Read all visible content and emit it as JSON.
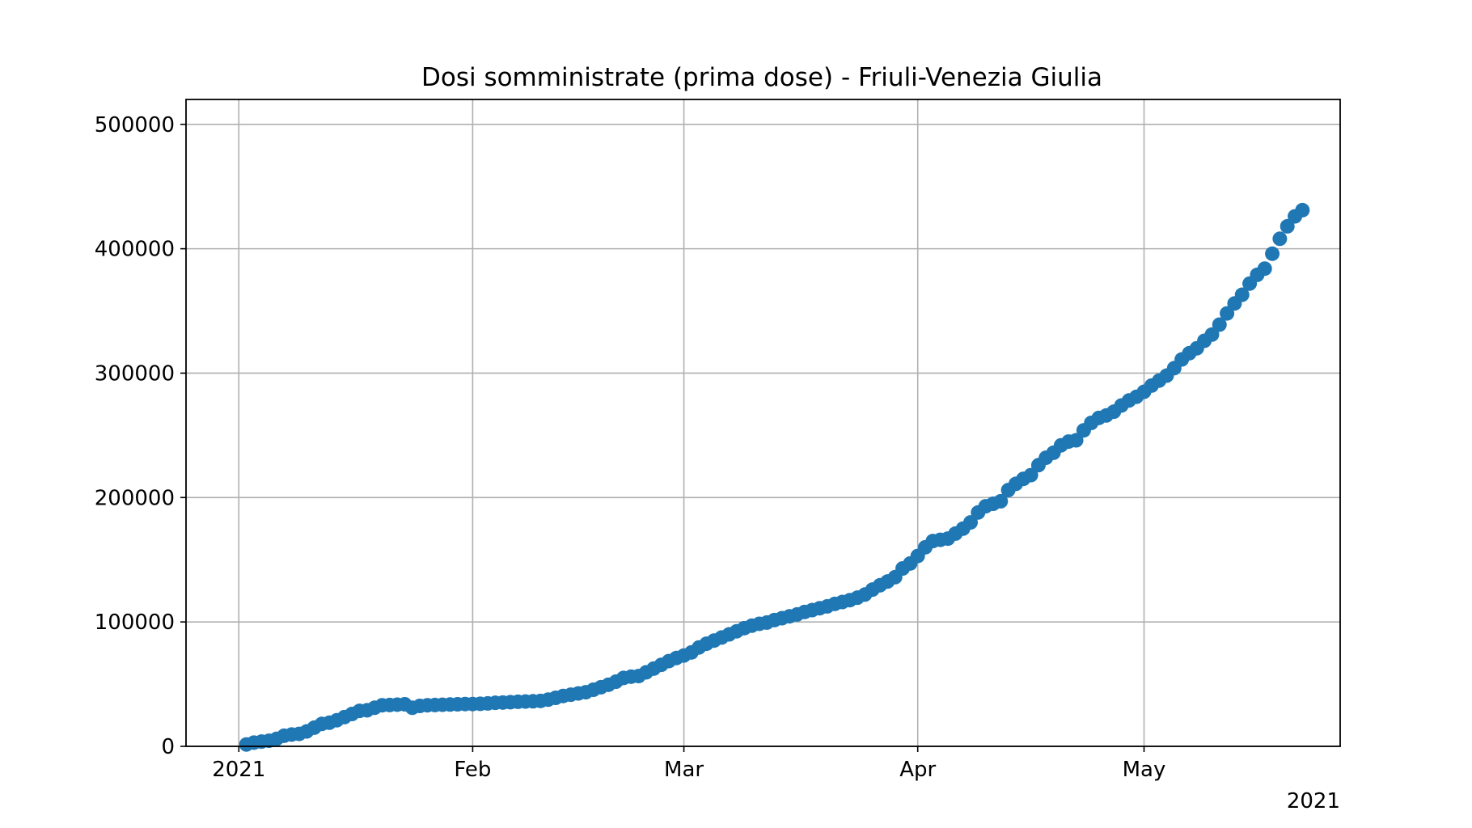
{
  "chart_data": {
    "type": "scatter",
    "title": "Dosi somministrate (prima dose) - Friuli-Venezia Giulia",
    "xlabel": "",
    "ylabel": "",
    "xlim": [
      "2020-12-25",
      "2021-05-27"
    ],
    "ylim": [
      0,
      520000
    ],
    "x_ticks": [
      {
        "date": "2021-01-01",
        "label": "2021"
      },
      {
        "date": "2021-02-01",
        "label": "Feb"
      },
      {
        "date": "2021-03-01",
        "label": "Mar"
      },
      {
        "date": "2021-04-01",
        "label": "Apr"
      },
      {
        "date": "2021-05-01",
        "label": "May"
      }
    ],
    "x_offset_label": "2021",
    "y_ticks": [
      {
        "value": 0,
        "label": "0"
      },
      {
        "value": 100000,
        "label": "100000"
      },
      {
        "value": 200000,
        "label": "200000"
      },
      {
        "value": 300000,
        "label": "300000"
      },
      {
        "value": 400000,
        "label": "400000"
      },
      {
        "value": 500000,
        "label": "500000"
      }
    ],
    "grid": true,
    "marker_color": "#1f77b4",
    "series": [
      {
        "points": [
          [
            "2021-01-02",
            1500
          ],
          [
            "2021-01-03",
            3000
          ],
          [
            "2021-01-04",
            3800
          ],
          [
            "2021-01-05",
            4500
          ],
          [
            "2021-01-06",
            6000
          ],
          [
            "2021-01-07",
            8500
          ],
          [
            "2021-01-08",
            9500
          ],
          [
            "2021-01-09",
            10000
          ],
          [
            "2021-01-10",
            12000
          ],
          [
            "2021-01-11",
            15000
          ],
          [
            "2021-01-12",
            18000
          ],
          [
            "2021-01-13",
            19000
          ],
          [
            "2021-01-14",
            21000
          ],
          [
            "2021-01-15",
            23500
          ],
          [
            "2021-01-16",
            26000
          ],
          [
            "2021-01-17",
            28500
          ],
          [
            "2021-01-18",
            29000
          ],
          [
            "2021-01-19",
            31000
          ],
          [
            "2021-01-20",
            33000
          ],
          [
            "2021-01-21",
            33200
          ],
          [
            "2021-01-22",
            33500
          ],
          [
            "2021-01-23",
            33800
          ],
          [
            "2021-01-24",
            31000
          ],
          [
            "2021-01-25",
            32500
          ],
          [
            "2021-01-26",
            33000
          ],
          [
            "2021-01-27",
            33200
          ],
          [
            "2021-01-28",
            33400
          ],
          [
            "2021-01-29",
            33600
          ],
          [
            "2021-01-30",
            33800
          ],
          [
            "2021-01-31",
            34000
          ],
          [
            "2021-02-01",
            34000
          ],
          [
            "2021-02-02",
            34200
          ],
          [
            "2021-02-03",
            34500
          ],
          [
            "2021-02-04",
            35000
          ],
          [
            "2021-02-05",
            35200
          ],
          [
            "2021-02-06",
            35500
          ],
          [
            "2021-02-07",
            35800
          ],
          [
            "2021-02-08",
            36000
          ],
          [
            "2021-02-09",
            36200
          ],
          [
            "2021-02-10",
            36500
          ],
          [
            "2021-02-11",
            37500
          ],
          [
            "2021-02-12",
            39000
          ],
          [
            "2021-02-13",
            40500
          ],
          [
            "2021-02-14",
            41500
          ],
          [
            "2021-02-15",
            42500
          ],
          [
            "2021-02-16",
            43500
          ],
          [
            "2021-02-17",
            45500
          ],
          [
            "2021-02-18",
            47500
          ],
          [
            "2021-02-19",
            49500
          ],
          [
            "2021-02-20",
            52000
          ],
          [
            "2021-02-21",
            55000
          ],
          [
            "2021-02-22",
            56000
          ],
          [
            "2021-02-23",
            56500
          ],
          [
            "2021-02-24",
            59500
          ],
          [
            "2021-02-25",
            62500
          ],
          [
            "2021-02-26",
            65500
          ],
          [
            "2021-02-27",
            68500
          ],
          [
            "2021-02-28",
            71000
          ],
          [
            "2021-03-01",
            73000
          ],
          [
            "2021-03-02",
            75500
          ],
          [
            "2021-03-03",
            79500
          ],
          [
            "2021-03-04",
            82500
          ],
          [
            "2021-03-05",
            85000
          ],
          [
            "2021-03-06",
            87500
          ],
          [
            "2021-03-07",
            90000
          ],
          [
            "2021-03-08",
            92500
          ],
          [
            "2021-03-09",
            95000
          ],
          [
            "2021-03-10",
            97000
          ],
          [
            "2021-03-11",
            98500
          ],
          [
            "2021-03-12",
            99500
          ],
          [
            "2021-03-13",
            101500
          ],
          [
            "2021-03-14",
            103000
          ],
          [
            "2021-03-15",
            104500
          ],
          [
            "2021-03-16",
            106000
          ],
          [
            "2021-03-17",
            108000
          ],
          [
            "2021-03-18",
            109500
          ],
          [
            "2021-03-19",
            111000
          ],
          [
            "2021-03-20",
            112500
          ],
          [
            "2021-03-21",
            114500
          ],
          [
            "2021-03-22",
            116000
          ],
          [
            "2021-03-23",
            117500
          ],
          [
            "2021-03-24",
            119500
          ],
          [
            "2021-03-25",
            122000
          ],
          [
            "2021-03-26",
            126000
          ],
          [
            "2021-03-27",
            129500
          ],
          [
            "2021-03-28",
            132500
          ],
          [
            "2021-03-29",
            136000
          ],
          [
            "2021-03-30",
            143000
          ],
          [
            "2021-03-31",
            147000
          ],
          [
            "2021-04-01",
            153000
          ],
          [
            "2021-04-02",
            160000
          ],
          [
            "2021-04-03",
            165000
          ],
          [
            "2021-04-04",
            166000
          ],
          [
            "2021-04-05",
            167000
          ],
          [
            "2021-04-06",
            171000
          ],
          [
            "2021-04-07",
            175000
          ],
          [
            "2021-04-08",
            180000
          ],
          [
            "2021-04-09",
            188000
          ],
          [
            "2021-04-10",
            193000
          ],
          [
            "2021-04-11",
            195000
          ],
          [
            "2021-04-12",
            197000
          ],
          [
            "2021-04-13",
            206000
          ],
          [
            "2021-04-14",
            211000
          ],
          [
            "2021-04-15",
            215000
          ],
          [
            "2021-04-16",
            218000
          ],
          [
            "2021-04-17",
            226000
          ],
          [
            "2021-04-18",
            232000
          ],
          [
            "2021-04-19",
            236000
          ],
          [
            "2021-04-20",
            242000
          ],
          [
            "2021-04-21",
            245000
          ],
          [
            "2021-04-22",
            246000
          ],
          [
            "2021-04-23",
            254000
          ],
          [
            "2021-04-24",
            260000
          ],
          [
            "2021-04-25",
            264000
          ],
          [
            "2021-04-26",
            266000
          ],
          [
            "2021-04-27",
            269000
          ],
          [
            "2021-04-28",
            274000
          ],
          [
            "2021-04-29",
            278000
          ],
          [
            "2021-04-30",
            281000
          ],
          [
            "2021-05-01",
            285000
          ],
          [
            "2021-05-02",
            290000
          ],
          [
            "2021-05-03",
            294000
          ],
          [
            "2021-05-04",
            298000
          ],
          [
            "2021-05-05",
            304000
          ],
          [
            "2021-05-06",
            311000
          ],
          [
            "2021-05-07",
            316000
          ],
          [
            "2021-05-08",
            320000
          ],
          [
            "2021-05-09",
            326000
          ],
          [
            "2021-05-10",
            331000
          ],
          [
            "2021-05-11",
            339000
          ],
          [
            "2021-05-12",
            348000
          ],
          [
            "2021-05-13",
            356000
          ],
          [
            "2021-05-14",
            363000
          ],
          [
            "2021-05-15",
            372000
          ],
          [
            "2021-05-16",
            379000
          ],
          [
            "2021-05-17",
            384000
          ],
          [
            "2021-05-18",
            396000
          ],
          [
            "2021-05-19",
            408000
          ],
          [
            "2021-05-20",
            418000
          ],
          [
            "2021-05-21",
            426000
          ],
          [
            "2021-05-22",
            431000
          ]
        ]
      }
    ]
  }
}
